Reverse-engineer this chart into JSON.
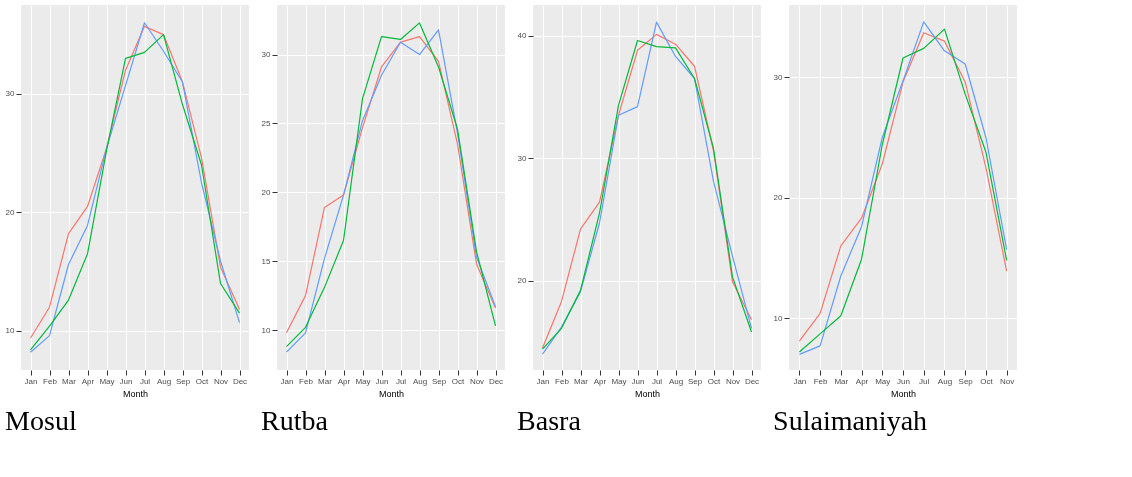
{
  "chart_data": [
    {
      "type": "line",
      "title": "Mosul",
      "xlabel": "Month",
      "categories": [
        "Jan",
        "Feb",
        "Mar",
        "Apr",
        "May",
        "Jun",
        "Jul",
        "Aug",
        "Sep",
        "Oct",
        "Nov",
        "Dec"
      ],
      "ylim": [
        6.7,
        37.5
      ],
      "yticks": [
        10,
        20,
        30
      ],
      "grid": true,
      "series": [
        {
          "color": "#F8766D",
          "values": [
            9.4,
            12.0,
            18.2,
            20.5,
            25.4,
            32.0,
            35.7,
            35.0,
            31.0,
            24.6,
            15.4,
            11.8
          ]
        },
        {
          "color": "#619CFF",
          "values": [
            8.2,
            9.6,
            15.6,
            18.9,
            25.4,
            30.7,
            36.0,
            33.6,
            31.0,
            22.5,
            15.9,
            10.7
          ]
        },
        {
          "color": "#00BA38",
          "values": [
            8.4,
            10.4,
            12.6,
            16.5,
            25.2,
            33.0,
            33.5,
            35.0,
            29.1,
            24.0,
            14.0,
            11.5
          ]
        }
      ]
    },
    {
      "type": "line",
      "title": "Rutba",
      "xlabel": "Month",
      "categories": [
        "Jan",
        "Feb",
        "Mar",
        "Apr",
        "May",
        "Jun",
        "Jul",
        "Aug",
        "Sep",
        "Oct",
        "Nov",
        "Dec"
      ],
      "ylim": [
        7.1,
        33.6
      ],
      "yticks": [
        10,
        15,
        20,
        25,
        30
      ],
      "grid": true,
      "series": [
        {
          "color": "#F8766D",
          "values": [
            9.8,
            12.5,
            18.9,
            19.8,
            24.7,
            29.1,
            30.9,
            31.3,
            29.5,
            23.5,
            14.8,
            11.6
          ]
        },
        {
          "color": "#619CFF",
          "values": [
            8.4,
            9.8,
            15.2,
            19.8,
            25.2,
            28.5,
            30.9,
            30.0,
            31.8,
            24.3,
            15.3,
            11.7
          ]
        },
        {
          "color": "#00BA38",
          "values": [
            8.8,
            10.2,
            13.1,
            16.5,
            26.8,
            31.3,
            31.1,
            32.3,
            29.1,
            24.6,
            15.7,
            10.3
          ]
        }
      ]
    },
    {
      "type": "line",
      "title": "Basra",
      "xlabel": "Month",
      "categories": [
        "Jan",
        "Feb",
        "Mar",
        "Apr",
        "May",
        "Jun",
        "Jul",
        "Aug",
        "Sep",
        "Oct",
        "Nov",
        "Dec"
      ],
      "ylim": [
        12.7,
        42.5
      ],
      "yticks": [
        20,
        30,
        40
      ],
      "grid": true,
      "series": [
        {
          "color": "#F8766D",
          "values": [
            14.5,
            18.3,
            24.2,
            26.4,
            33.5,
            38.8,
            40.1,
            39.3,
            37.5,
            30.6,
            19.9,
            16.8
          ]
        },
        {
          "color": "#619CFF",
          "values": [
            14.0,
            16.2,
            19.1,
            24.7,
            33.5,
            34.2,
            41.1,
            38.3,
            36.5,
            28.1,
            22.0,
            16.1
          ]
        },
        {
          "color": "#00BA38",
          "values": [
            14.4,
            16.1,
            19.2,
            25.5,
            34.3,
            39.6,
            39.1,
            39.0,
            36.5,
            30.8,
            20.3,
            15.8
          ]
        }
      ]
    },
    {
      "type": "line",
      "title": "Sulaimaniyah",
      "xlabel": "Month",
      "categories": [
        "Jan",
        "Feb",
        "Mar",
        "Apr",
        "May",
        "Jun",
        "Jul",
        "Aug",
        "Sep",
        "Oct",
        "Nov"
      ],
      "ylim": [
        5.7,
        36.0
      ],
      "yticks": [
        10,
        20,
        30
      ],
      "grid": true,
      "series": [
        {
          "color": "#F8766D",
          "values": [
            8.1,
            10.4,
            16.0,
            18.3,
            22.8,
            29.6,
            33.7,
            33.0,
            29.6,
            22.5,
            13.9
          ]
        },
        {
          "color": "#619CFF",
          "values": [
            7.0,
            7.7,
            13.5,
            17.6,
            25.0,
            29.7,
            34.6,
            32.2,
            31.1,
            25.0,
            15.7
          ]
        },
        {
          "color": "#00BA38",
          "values": [
            7.2,
            8.7,
            10.2,
            14.9,
            24.4,
            31.6,
            32.4,
            34.0,
            28.6,
            23.8,
            14.8
          ]
        }
      ]
    }
  ]
}
